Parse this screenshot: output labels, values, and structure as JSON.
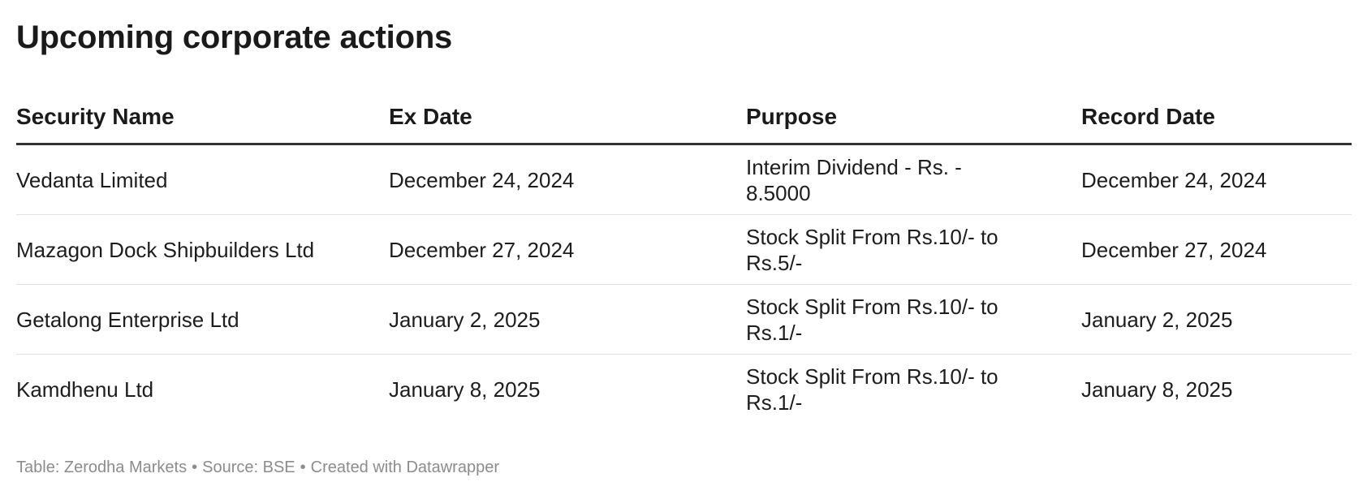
{
  "title": "Upcoming corporate actions",
  "table": {
    "headers": [
      "Security Name",
      "Ex Date",
      "Purpose",
      "Record Date"
    ],
    "rows": [
      {
        "security": "Vedanta Limited",
        "ex_date": "December 24, 2024",
        "purpose_line1": "Interim Dividend - Rs. -",
        "purpose_line2": "8.5000",
        "record_date": "December 24, 2024"
      },
      {
        "security": "Mazagon Dock Shipbuilders Ltd",
        "ex_date": "December 27, 2024",
        "purpose_line1": "Stock Split From Rs.10/- to",
        "purpose_line2": "Rs.5/-",
        "record_date": "December 27, 2024"
      },
      {
        "security": "Getalong Enterprise Ltd",
        "ex_date": "January 2, 2025",
        "purpose_line1": "Stock Split From Rs.10/- to",
        "purpose_line2": "Rs.1/-",
        "record_date": "January 2, 2025"
      },
      {
        "security": "Kamdhenu Ltd",
        "ex_date": "January 8, 2025",
        "purpose_line1": "Stock Split From Rs.10/- to",
        "purpose_line2": "Rs.1/-",
        "record_date": "January 8, 2025"
      }
    ]
  },
  "footer": {
    "table_credit": "Table: Zerodha Markets",
    "source": "Source: BSE",
    "created_with": "Created with Datawrapper",
    "separator": "•"
  }
}
